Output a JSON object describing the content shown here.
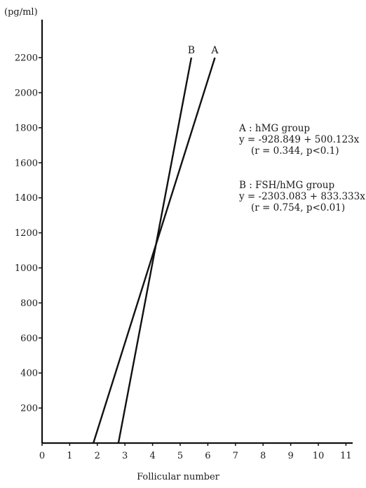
{
  "chart_data": {
    "type": "line",
    "title": "",
    "ylabel": "(pg/ml)",
    "xlabel": "Follicular number",
    "x_ticks": [
      "0",
      "1",
      "2",
      "3",
      "4",
      "5",
      "6",
      "7",
      "8",
      "9",
      "10",
      "11"
    ],
    "y_ticks": [
      "200",
      "400",
      "600",
      "800",
      "1000",
      "1200",
      "1400",
      "1600",
      "1800",
      "2000",
      "2200"
    ],
    "xlim": [
      0,
      11
    ],
    "ylim": [
      0,
      2200
    ],
    "grid": false,
    "series": [
      {
        "name": "A",
        "intercept": -928.849,
        "slope": 500.123,
        "x_start": 1.857,
        "x_end": 6.256
      },
      {
        "name": "B",
        "intercept": -2303.083,
        "slope": 833.333,
        "x_start": 2.764,
        "x_end": 5.404
      }
    ],
    "annotations": [
      {
        "id": "A",
        "lines": [
          "A : hMG group",
          "y = -928.849 + 500.123x",
          "(r = 0.344,  p<0.1)"
        ]
      },
      {
        "id": "B",
        "lines": [
          "B : FSH/hMG group",
          "y = -2303.083 + 833.333x",
          "(r = 0.754,  p<0.01)"
        ]
      }
    ]
  }
}
